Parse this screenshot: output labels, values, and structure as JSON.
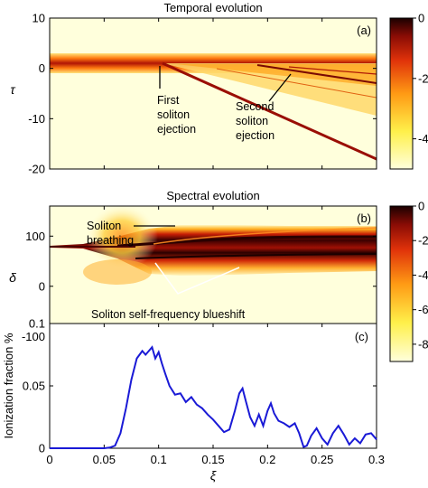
{
  "chart_data": [
    {
      "type": "heatmap",
      "panel_label": "(a)",
      "title": "Temporal evolution",
      "xlabel": "",
      "ylabel": "τ",
      "xlim": [
        0,
        0.3
      ],
      "ylim": [
        -20,
        10
      ],
      "yticks": [
        "10",
        "0",
        "-10",
        "-20"
      ],
      "colorbar": {
        "range": [
          -5,
          0
        ],
        "ticks": [
          "0",
          "-2",
          "-4"
        ]
      },
      "features": [
        {
          "name": "main pulse",
          "tau": 0,
          "xi_range": [
            0,
            0.3
          ]
        },
        {
          "name": "first ejected soliton",
          "xi_start": 0.11,
          "tau_at_end": -15
        },
        {
          "name": "second ejected soliton",
          "xi_start": 0.21,
          "tau_at_end": -6
        }
      ],
      "annotations": [
        {
          "id": "first",
          "lines": [
            "First",
            "soliton",
            "ejection"
          ]
        },
        {
          "id": "second",
          "lines": [
            "Second",
            "soliton",
            "ejection"
          ]
        }
      ]
    },
    {
      "type": "heatmap",
      "panel_label": "(b)",
      "title": "Spectral evolution",
      "xlabel": "",
      "ylabel": "δ",
      "xlim": [
        0,
        0.3
      ],
      "ylim": [
        -150,
        160
      ],
      "yticks": [
        "100",
        "0",
        "-100"
      ],
      "colorbar": {
        "range": [
          -9,
          0
        ],
        "ticks": [
          "0",
          "-2",
          "-4",
          "-6",
          "-8"
        ]
      },
      "annotations": [
        {
          "id": "breathing",
          "lines": [
            "Soliton",
            "breathing"
          ]
        },
        {
          "id": "blueshift",
          "lines": [
            "Soliton self-frequency blueshift"
          ]
        }
      ]
    },
    {
      "type": "line",
      "panel_label": "(c)",
      "title": "",
      "xlabel": "ξ",
      "ylabel": "Ionization fraction %",
      "xlim": [
        0,
        0.3
      ],
      "ylim": [
        0,
        0.1
      ],
      "xticks": [
        "0",
        "0.05",
        "0.1",
        "0.15",
        "0.2",
        "0.25",
        "0.3"
      ],
      "yticks": [
        "0.1",
        "0.05",
        "0"
      ],
      "color": "#1a1ad6",
      "x": [
        0,
        0.05,
        0.055,
        0.06,
        0.065,
        0.07,
        0.075,
        0.08,
        0.085,
        0.088,
        0.091,
        0.094,
        0.097,
        0.1,
        0.103,
        0.106,
        0.11,
        0.115,
        0.12,
        0.125,
        0.13,
        0.135,
        0.14,
        0.145,
        0.15,
        0.155,
        0.16,
        0.165,
        0.17,
        0.174,
        0.177,
        0.18,
        0.184,
        0.188,
        0.192,
        0.196,
        0.2,
        0.203,
        0.206,
        0.21,
        0.215,
        0.22,
        0.225,
        0.229,
        0.233,
        0.236,
        0.24,
        0.245,
        0.25,
        0.255,
        0.26,
        0.265,
        0.27,
        0.275,
        0.28,
        0.285,
        0.29,
        0.295,
        0.3
      ],
      "y": [
        0,
        0,
        0.0005,
        0.002,
        0.012,
        0.032,
        0.055,
        0.072,
        0.078,
        0.075,
        0.078,
        0.081,
        0.072,
        0.077,
        0.068,
        0.06,
        0.05,
        0.043,
        0.044,
        0.037,
        0.041,
        0.035,
        0.032,
        0.027,
        0.023,
        0.018,
        0.013,
        0.015,
        0.03,
        0.044,
        0.048,
        0.038,
        0.025,
        0.018,
        0.027,
        0.018,
        0.03,
        0.036,
        0.028,
        0.022,
        0.02,
        0.017,
        0.02,
        0.012,
        0.001,
        0.002,
        0.01,
        0.016,
        0.008,
        0.003,
        0.012,
        0.018,
        0.011,
        0.003,
        0.008,
        0.004,
        0.011,
        0.012,
        0.007
      ]
    }
  ]
}
